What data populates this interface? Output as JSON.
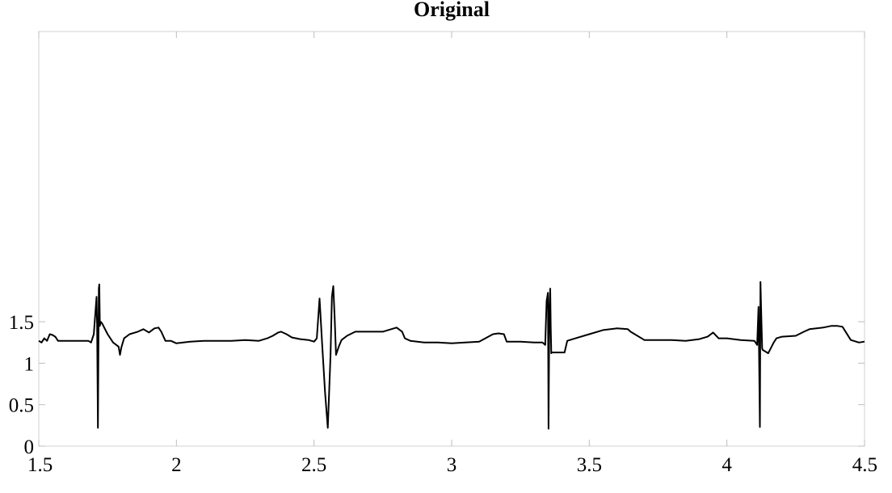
{
  "chart_data": {
    "type": "line",
    "title": "Original",
    "xlabel": "",
    "ylabel": "",
    "xlim": [
      1.5,
      4.5
    ],
    "ylim": [
      0,
      5
    ],
    "grid": false,
    "x_ticks": [
      1.5,
      2,
      2.5,
      3,
      3.5,
      4,
      4.5
    ],
    "x_tick_labels": [
      "1.5",
      "2",
      "2.5",
      "3",
      "3.5",
      "4",
      "4.5"
    ],
    "y_ticks": [
      0,
      0.5,
      1,
      1.5
    ],
    "y_tick_labels": [
      "0",
      "0.5",
      "1",
      "1.5"
    ],
    "series": [
      {
        "color": "#000000",
        "x": [
          1.5,
          1.51,
          1.52,
          1.53,
          1.54,
          1.55,
          1.56,
          1.57,
          1.6,
          1.64,
          1.68,
          1.69,
          1.7,
          1.71,
          1.712,
          1.715,
          1.718,
          1.72,
          1.722,
          1.725,
          1.73,
          1.75,
          1.77,
          1.79,
          1.795,
          1.8,
          1.81,
          1.83,
          1.86,
          1.88,
          1.9,
          1.92,
          1.935,
          1.945,
          1.96,
          1.98,
          2.0,
          2.05,
          2.1,
          2.15,
          2.2,
          2.25,
          2.3,
          2.33,
          2.35,
          2.37,
          2.38,
          2.4,
          2.42,
          2.45,
          2.48,
          2.5,
          2.51,
          2.52,
          2.53,
          2.54,
          2.55,
          2.56,
          2.565,
          2.57,
          2.575,
          2.58,
          2.59,
          2.6,
          2.62,
          2.65,
          2.7,
          2.75,
          2.79,
          2.8,
          2.82,
          2.83,
          2.85,
          2.9,
          2.95,
          3.0,
          3.05,
          3.1,
          3.15,
          3.17,
          3.19,
          3.2,
          3.25,
          3.3,
          3.33,
          3.34,
          3.345,
          3.35,
          3.352,
          3.355,
          3.358,
          3.36,
          3.362,
          3.365,
          3.37,
          3.39,
          3.41,
          3.42,
          3.45,
          3.5,
          3.55,
          3.6,
          3.64,
          3.65,
          3.7,
          3.75,
          3.8,
          3.85,
          3.9,
          3.93,
          3.95,
          3.97,
          4.0,
          4.05,
          4.1,
          4.11,
          4.115,
          4.12,
          4.122,
          4.125,
          4.128,
          4.13,
          4.14,
          4.15,
          4.17,
          4.18,
          4.2,
          4.25,
          4.28,
          4.3,
          4.35,
          4.38,
          4.4,
          4.42,
          4.45,
          4.48,
          4.5
        ],
        "y": [
          1.27,
          1.25,
          1.3,
          1.27,
          1.35,
          1.34,
          1.32,
          1.27,
          1.27,
          1.27,
          1.27,
          1.25,
          1.35,
          1.8,
          1.45,
          0.22,
          1.9,
          1.95,
          1.45,
          1.5,
          1.48,
          1.35,
          1.25,
          1.2,
          1.1,
          1.19,
          1.3,
          1.35,
          1.38,
          1.41,
          1.37,
          1.42,
          1.43,
          1.38,
          1.27,
          1.27,
          1.24,
          1.26,
          1.27,
          1.27,
          1.27,
          1.28,
          1.27,
          1.3,
          1.33,
          1.37,
          1.38,
          1.35,
          1.31,
          1.29,
          1.28,
          1.26,
          1.3,
          1.78,
          1.2,
          0.65,
          0.22,
          1.1,
          1.8,
          1.93,
          1.55,
          1.1,
          1.2,
          1.28,
          1.33,
          1.38,
          1.38,
          1.38,
          1.42,
          1.43,
          1.38,
          1.3,
          1.27,
          1.25,
          1.25,
          1.24,
          1.25,
          1.26,
          1.35,
          1.36,
          1.35,
          1.26,
          1.26,
          1.25,
          1.25,
          1.22,
          1.75,
          1.85,
          0.21,
          1.6,
          1.9,
          1.45,
          1.12,
          1.13,
          1.13,
          1.13,
          1.13,
          1.27,
          1.3,
          1.35,
          1.4,
          1.42,
          1.41,
          1.38,
          1.28,
          1.28,
          1.28,
          1.27,
          1.29,
          1.32,
          1.37,
          1.3,
          1.3,
          1.28,
          1.27,
          1.22,
          1.68,
          0.23,
          1.98,
          1.55,
          1.18,
          1.16,
          1.14,
          1.12,
          1.25,
          1.3,
          1.32,
          1.33,
          1.38,
          1.41,
          1.43,
          1.45,
          1.45,
          1.44,
          1.28,
          1.25,
          1.26
        ]
      }
    ]
  }
}
